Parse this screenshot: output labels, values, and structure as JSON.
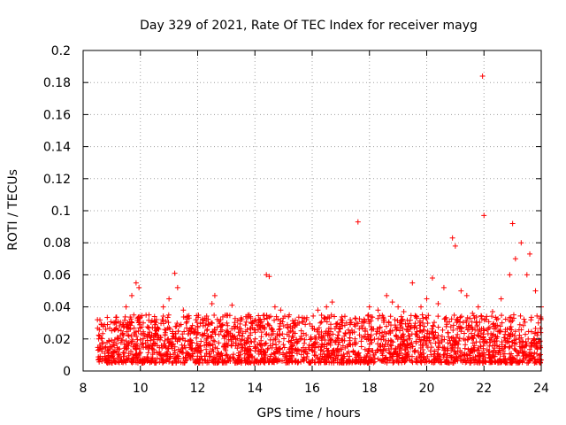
{
  "chart_data": {
    "type": "scatter",
    "title": "Day 329 of 2021, Rate Of TEC Index for receiver mayg",
    "xlabel": "GPS time / hours",
    "ylabel": "ROTI / TECUs",
    "xlim": [
      8,
      24
    ],
    "ylim": [
      0,
      0.2
    ],
    "xticks": [
      "8",
      "10",
      "12",
      "14",
      "16",
      "18",
      "20",
      "22",
      "24"
    ],
    "yticks": [
      "0",
      "0.02",
      "0.04",
      "0.06",
      "0.08",
      "0.1",
      "0.12",
      "0.14",
      "0.16",
      "0.18",
      "0.2"
    ],
    "grid": true,
    "marker": "plus",
    "color": "#ff0000",
    "series": [
      {
        "name": "ROTI",
        "x": [
          8.5,
          8.6,
          8.7,
          8.9,
          9.1,
          9.3,
          9.5,
          9.7,
          9.85,
          9.95,
          10.1,
          10.3,
          10.5,
          10.8,
          11.0,
          11.2,
          11.3,
          11.5,
          11.7,
          12.0,
          12.2,
          12.5,
          12.6,
          12.8,
          13.0,
          13.2,
          13.5,
          13.8,
          14.0,
          14.2,
          14.4,
          14.5,
          14.7,
          14.9,
          15.2,
          15.5,
          15.8,
          16.0,
          16.2,
          16.5,
          16.7,
          17.0,
          17.2,
          17.5,
          17.6,
          17.8,
          18.0,
          18.3,
          18.6,
          18.8,
          19.0,
          19.2,
          19.5,
          19.8,
          20.0,
          20.2,
          20.4,
          20.6,
          20.9,
          21.0,
          21.2,
          21.4,
          21.6,
          21.8,
          21.95,
          22.0,
          22.3,
          22.6,
          22.9,
          23.0,
          23.1,
          23.3,
          23.5,
          23.6,
          23.8,
          23.9,
          24.0
        ],
        "y": [
          0.032,
          0.015,
          0.028,
          0.019,
          0.03,
          0.022,
          0.04,
          0.047,
          0.055,
          0.052,
          0.03,
          0.035,
          0.031,
          0.04,
          0.045,
          0.061,
          0.052,
          0.038,
          0.033,
          0.028,
          0.03,
          0.042,
          0.047,
          0.032,
          0.025,
          0.041,
          0.032,
          0.035,
          0.026,
          0.03,
          0.06,
          0.059,
          0.04,
          0.038,
          0.035,
          0.03,
          0.032,
          0.028,
          0.038,
          0.04,
          0.043,
          0.032,
          0.03,
          0.033,
          0.093,
          0.03,
          0.04,
          0.038,
          0.047,
          0.043,
          0.04,
          0.037,
          0.055,
          0.04,
          0.045,
          0.058,
          0.042,
          0.052,
          0.083,
          0.078,
          0.05,
          0.047,
          0.036,
          0.04,
          0.184,
          0.097,
          0.037,
          0.045,
          0.06,
          0.092,
          0.07,
          0.08,
          0.06,
          0.073,
          0.05,
          0.03,
          0.04
        ]
      }
    ],
    "dense_band": {
      "description": "dense cloud of points from 8.5 to 24 h",
      "x_range": [
        8.5,
        24
      ],
      "y_range": [
        0.005,
        0.035
      ]
    }
  }
}
